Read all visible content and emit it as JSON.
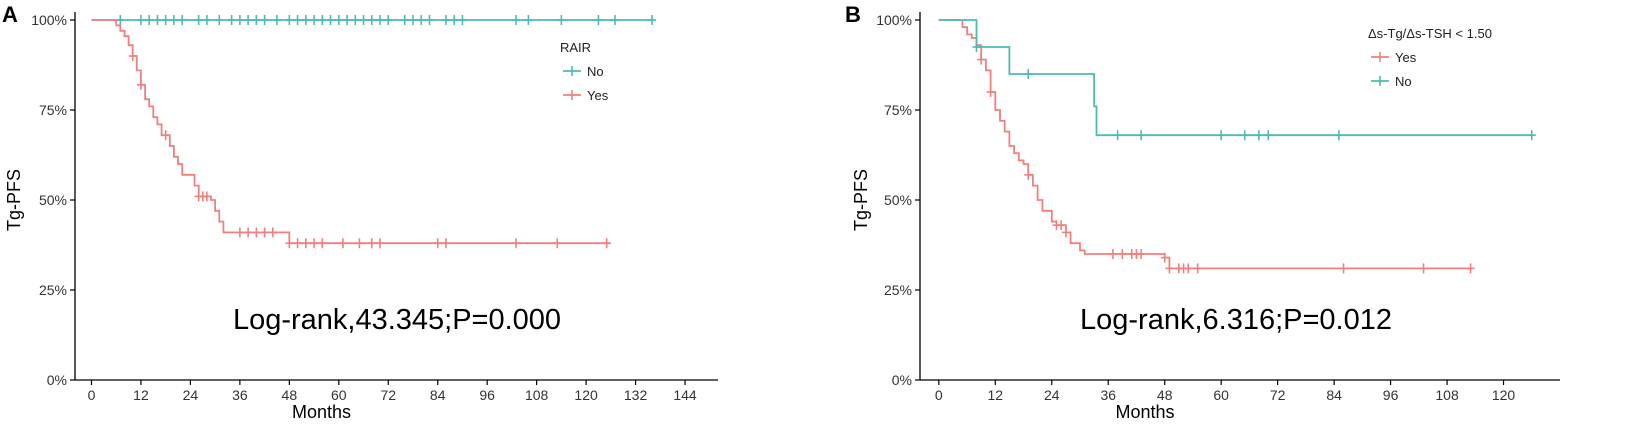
{
  "chart_data": [
    {
      "panel": "A",
      "type": "line",
      "subtype": "kaplan-meier",
      "xlabel": "Months",
      "ylabel": "Tg-PFS",
      "x_ticks": [
        0,
        12,
        24,
        36,
        48,
        60,
        72,
        84,
        96,
        108,
        120,
        132,
        144
      ],
      "y_ticks": [
        "0%",
        "25%",
        "50%",
        "75%",
        "100%"
      ],
      "xlim": [
        -4,
        152
      ],
      "ylim": [
        0,
        1
      ],
      "legend_title": "RAIR",
      "annotation": "Log-rank,43.345;P=0.000",
      "series": [
        {
          "name": "No",
          "color": "#4DBBB2",
          "steps": [
            [
              0,
              1.0
            ],
            [
              136,
              1.0
            ]
          ],
          "censors": [
            7,
            12,
            14,
            16,
            18,
            20,
            22,
            26,
            28,
            31,
            34,
            36,
            38,
            40,
            42,
            45,
            48,
            50,
            52,
            54,
            56,
            58,
            60,
            62,
            64,
            66,
            68,
            70,
            72,
            76,
            78,
            80,
            82,
            86,
            88,
            90,
            103,
            106,
            114,
            123,
            127,
            136
          ]
        },
        {
          "name": "Yes",
          "color": "#F08080",
          "steps": [
            [
              0,
              1.0
            ],
            [
              5,
              1.0
            ],
            [
              6,
              0.985
            ],
            [
              7,
              0.97
            ],
            [
              8,
              0.955
            ],
            [
              9,
              0.93
            ],
            [
              10,
              0.9
            ],
            [
              11,
              0.86
            ],
            [
              12,
              0.82
            ],
            [
              13,
              0.78
            ],
            [
              14,
              0.76
            ],
            [
              15,
              0.73
            ],
            [
              16,
              0.71
            ],
            [
              17,
              0.68
            ],
            [
              19,
              0.65
            ],
            [
              20,
              0.62
            ],
            [
              21,
              0.6
            ],
            [
              22,
              0.57
            ],
            [
              25,
              0.54
            ],
            [
              26,
              0.51
            ],
            [
              29,
              0.5
            ],
            [
              30,
              0.47
            ],
            [
              31,
              0.44
            ],
            [
              32,
              0.41
            ],
            [
              48,
              0.38
            ],
            [
              126,
              0.38
            ]
          ],
          "censors": [
            10,
            12,
            18,
            26,
            27,
            28,
            36,
            38,
            40,
            42,
            44,
            48,
            50,
            52,
            54,
            56,
            61,
            65,
            68,
            70,
            84,
            86,
            103,
            113,
            125
          ]
        }
      ]
    },
    {
      "panel": "B",
      "type": "line",
      "subtype": "kaplan-meier",
      "xlabel": "Months",
      "ylabel": "Tg-PFS",
      "x_ticks": [
        0,
        12,
        24,
        36,
        48,
        60,
        72,
        84,
        96,
        108,
        120
      ],
      "y_ticks": [
        "0%",
        "25%",
        "50%",
        "75%",
        "100%"
      ],
      "xlim": [
        -4,
        132
      ],
      "ylim": [
        0,
        1
      ],
      "legend_title": "Δs-Tg/Δs-TSH < 1.50",
      "annotation": "Log-rank,6.316;P=0.012",
      "series": [
        {
          "name": "Yes",
          "color": "#F08080",
          "steps": [
            [
              0,
              1.0
            ],
            [
              4,
              1.0
            ],
            [
              5,
              0.98
            ],
            [
              6,
              0.96
            ],
            [
              7,
              0.95
            ],
            [
              8,
              0.93
            ],
            [
              9,
              0.89
            ],
            [
              10,
              0.86
            ],
            [
              11,
              0.8
            ],
            [
              12,
              0.75
            ],
            [
              13,
              0.72
            ],
            [
              14,
              0.69
            ],
            [
              15,
              0.65
            ],
            [
              16,
              0.63
            ],
            [
              17,
              0.61
            ],
            [
              18,
              0.6
            ],
            [
              19,
              0.57
            ],
            [
              20,
              0.54
            ],
            [
              21,
              0.5
            ],
            [
              22,
              0.47
            ],
            [
              24,
              0.44
            ],
            [
              25,
              0.43
            ],
            [
              27,
              0.41
            ],
            [
              28,
              0.38
            ],
            [
              30,
              0.36
            ],
            [
              31,
              0.35
            ],
            [
              48,
              0.34
            ],
            [
              49,
              0.31
            ],
            [
              113,
              0.31
            ]
          ],
          "censors": [
            9,
            11,
            19,
            25,
            26,
            27,
            37,
            39,
            41,
            42,
            43,
            48,
            49,
            51,
            52,
            53,
            55,
            86,
            103,
            113
          ]
        },
        {
          "name": "No",
          "color": "#4DBBB2",
          "steps": [
            [
              0,
              1.0
            ],
            [
              8,
              1.0
            ],
            [
              8,
              0.925
            ],
            [
              15,
              0.925
            ],
            [
              15,
              0.85
            ],
            [
              33,
              0.85
            ],
            [
              33,
              0.76
            ],
            [
              33.5,
              0.76
            ],
            [
              33.5,
              0.68
            ],
            [
              126,
              0.68
            ]
          ],
          "censors": [
            8,
            19,
            38,
            43,
            60,
            65,
            68,
            70,
            85,
            126
          ]
        }
      ]
    }
  ]
}
